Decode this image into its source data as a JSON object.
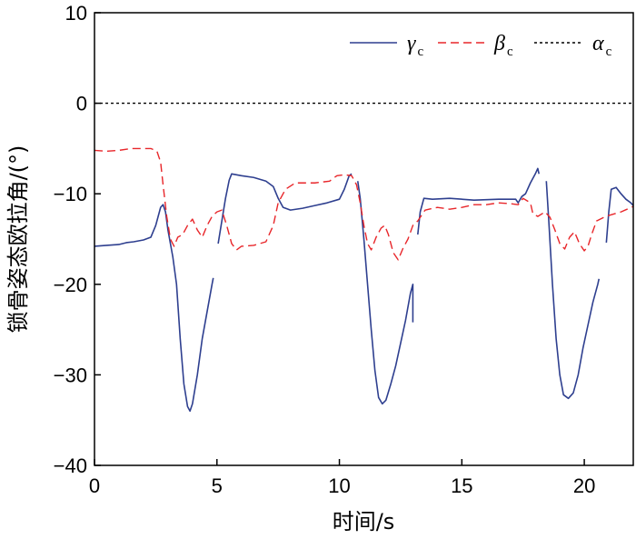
{
  "chart_data": {
    "type": "line",
    "title": "",
    "xlabel": "时间/s",
    "ylabel": "锁骨姿态欧拉角/(°)",
    "xlim": [
      0,
      22
    ],
    "ylim": [
      -40,
      10
    ],
    "xticks": [
      "0",
      "5",
      "10",
      "15",
      "20"
    ],
    "yticks": [
      "10",
      "0",
      "−10",
      "−20",
      "−30",
      "−40"
    ],
    "legend_position": "top-right",
    "grid": false,
    "series": [
      {
        "name": "γ",
        "subscript": "c",
        "color": "#2e3f8f",
        "style": "solid",
        "segments": [
          [
            [
              0,
              -15.8
            ],
            [
              0.5,
              -15.7
            ],
            [
              1.0,
              -15.6
            ],
            [
              1.3,
              -15.4
            ],
            [
              1.6,
              -15.3
            ],
            [
              2.0,
              -15.1
            ],
            [
              2.3,
              -14.8
            ],
            [
              2.5,
              -13.5
            ],
            [
              2.7,
              -11.5
            ],
            [
              2.8,
              -11.2
            ],
            [
              2.9,
              -12.0
            ],
            [
              3.0,
              -14.0
            ],
            [
              3.2,
              -17.0
            ],
            [
              3.35,
              -20.0
            ],
            [
              3.5,
              -26.0
            ],
            [
              3.65,
              -31.0
            ],
            [
              3.8,
              -33.5
            ],
            [
              3.9,
              -34.0
            ],
            [
              4.0,
              -33.2
            ],
            [
              4.2,
              -30.0
            ],
            [
              4.4,
              -26.0
            ],
            [
              4.6,
              -23.0
            ],
            [
              4.8,
              -20.0
            ],
            [
              4.85,
              -19.3
            ]
          ],
          [
            [
              5.05,
              -15.5
            ],
            [
              5.2,
              -13.0
            ],
            [
              5.35,
              -10.5
            ],
            [
              5.5,
              -8.5
            ],
            [
              5.6,
              -7.8
            ],
            [
              6.0,
              -8.0
            ],
            [
              6.5,
              -8.2
            ],
            [
              7.0,
              -8.6
            ],
            [
              7.3,
              -9.2
            ],
            [
              7.5,
              -10.5
            ],
            [
              7.7,
              -11.5
            ],
            [
              8.0,
              -11.8
            ],
            [
              8.5,
              -11.6
            ],
            [
              9.0,
              -11.3
            ],
            [
              9.5,
              -11.0
            ],
            [
              10.0,
              -10.6
            ],
            [
              10.2,
              -9.5
            ],
            [
              10.4,
              -8.0
            ],
            [
              10.5,
              -7.8
            ]
          ],
          [
            [
              10.75,
              -8.6
            ],
            [
              10.85,
              -10.5
            ],
            [
              11.0,
              -15.0
            ],
            [
              11.15,
              -20.0
            ],
            [
              11.3,
              -25.0
            ],
            [
              11.45,
              -29.5
            ],
            [
              11.6,
              -32.5
            ],
            [
              11.75,
              -33.2
            ],
            [
              11.9,
              -32.8
            ],
            [
              12.1,
              -31.0
            ],
            [
              12.3,
              -29.0
            ],
            [
              12.5,
              -26.5
            ],
            [
              12.7,
              -24.0
            ],
            [
              12.9,
              -21.0
            ],
            [
              13.0,
              -20.0
            ],
            [
              13.0,
              -24.2
            ]
          ],
          [
            [
              13.2,
              -14.5
            ],
            [
              13.3,
              -12.0
            ],
            [
              13.45,
              -10.5
            ],
            [
              13.8,
              -10.6
            ],
            [
              14.5,
              -10.5
            ],
            [
              15.5,
              -10.7
            ],
            [
              16.5,
              -10.6
            ],
            [
              17.2,
              -10.6
            ],
            [
              17.3,
              -11.0
            ],
            [
              17.45,
              -10.3
            ],
            [
              17.6,
              -10.0
            ],
            [
              17.8,
              -8.8
            ],
            [
              18.0,
              -7.8
            ],
            [
              18.1,
              -7.2
            ],
            [
              18.15,
              -7.8
            ]
          ],
          [
            [
              18.45,
              -8.6
            ],
            [
              18.55,
              -13.0
            ],
            [
              18.7,
              -20.0
            ],
            [
              18.85,
              -26.0
            ],
            [
              19.0,
              -30.0
            ],
            [
              19.15,
              -32.2
            ],
            [
              19.35,
              -32.6
            ],
            [
              19.55,
              -32.0
            ],
            [
              19.75,
              -30.0
            ],
            [
              19.95,
              -27.0
            ],
            [
              20.15,
              -24.5
            ],
            [
              20.35,
              -22.0
            ],
            [
              20.55,
              -20.0
            ],
            [
              20.6,
              -19.4
            ]
          ],
          [
            [
              20.9,
              -15.4
            ],
            [
              21.0,
              -12.0
            ],
            [
              21.1,
              -9.5
            ],
            [
              21.3,
              -9.3
            ],
            [
              21.5,
              -10.0
            ],
            [
              21.7,
              -10.6
            ],
            [
              21.9,
              -11.0
            ],
            [
              22.0,
              -11.3
            ]
          ]
        ]
      },
      {
        "name": "β",
        "subscript": "c",
        "color": "#e8262a",
        "style": "dashed",
        "segments": [
          [
            [
              0,
              -5.2
            ],
            [
              0.5,
              -5.3
            ],
            [
              1.0,
              -5.2
            ],
            [
              1.5,
              -5.0
            ],
            [
              2.0,
              -5.0
            ],
            [
              2.3,
              -5.0
            ],
            [
              2.55,
              -5.3
            ],
            [
              2.7,
              -6.5
            ],
            [
              2.8,
              -9.0
            ],
            [
              2.95,
              -12.5
            ],
            [
              3.1,
              -15.0
            ],
            [
              3.25,
              -15.8
            ],
            [
              3.4,
              -14.8
            ],
            [
              3.6,
              -14.5
            ],
            [
              3.8,
              -13.5
            ],
            [
              4.0,
              -12.8
            ],
            [
              4.2,
              -14.0
            ],
            [
              4.4,
              -14.8
            ],
            [
              4.6,
              -13.5
            ],
            [
              4.8,
              -12.5
            ],
            [
              5.0,
              -12.0
            ],
            [
              5.2,
              -11.8
            ],
            [
              5.4,
              -13.5
            ],
            [
              5.6,
              -15.5
            ],
            [
              5.8,
              -16.2
            ],
            [
              6.0,
              -15.8
            ],
            [
              6.5,
              -15.7
            ],
            [
              7.0,
              -15.3
            ],
            [
              7.3,
              -13.5
            ],
            [
              7.5,
              -11.0
            ],
            [
              7.8,
              -9.5
            ],
            [
              8.2,
              -8.8
            ],
            [
              9.0,
              -8.8
            ],
            [
              9.6,
              -8.6
            ],
            [
              9.9,
              -8.0
            ],
            [
              10.2,
              -7.9
            ],
            [
              10.5,
              -8.0
            ],
            [
              10.7,
              -9.0
            ],
            [
              10.85,
              -11.0
            ],
            [
              11.0,
              -13.5
            ],
            [
              11.15,
              -15.5
            ],
            [
              11.3,
              -16.2
            ],
            [
              11.5,
              -14.8
            ],
            [
              11.7,
              -13.8
            ],
            [
              11.85,
              -13.5
            ],
            [
              12.0,
              -14.5
            ],
            [
              12.2,
              -16.5
            ],
            [
              12.4,
              -17.3
            ],
            [
              12.6,
              -16.0
            ],
            [
              12.8,
              -15.0
            ],
            [
              13.0,
              -13.5
            ],
            [
              13.2,
              -13.0
            ],
            [
              13.5,
              -11.8
            ],
            [
              14.0,
              -11.5
            ],
            [
              14.5,
              -11.7
            ],
            [
              15.0,
              -11.5
            ],
            [
              15.5,
              -11.2
            ],
            [
              16.0,
              -11.2
            ],
            [
              16.5,
              -11.0
            ],
            [
              17.0,
              -11.1
            ],
            [
              17.3,
              -11.2
            ],
            [
              17.5,
              -10.5
            ],
            [
              17.8,
              -11.0
            ],
            [
              17.9,
              -12.2
            ],
            [
              18.1,
              -12.5
            ],
            [
              18.4,
              -12.0
            ],
            [
              18.6,
              -12.6
            ],
            [
              18.8,
              -14.0
            ],
            [
              19.0,
              -15.5
            ],
            [
              19.2,
              -16.1
            ],
            [
              19.4,
              -14.8
            ],
            [
              19.6,
              -14.2
            ],
            [
              19.8,
              -15.5
            ],
            [
              20.0,
              -16.3
            ],
            [
              20.15,
              -15.8
            ],
            [
              20.3,
              -14.5
            ],
            [
              20.5,
              -13.0
            ],
            [
              20.8,
              -12.6
            ],
            [
              21.0,
              -12.4
            ],
            [
              21.5,
              -12.0
            ],
            [
              22.0,
              -11.4
            ]
          ]
        ]
      },
      {
        "name": "α",
        "subscript": "c",
        "color": "#000000",
        "style": "dotted",
        "segments": [
          [
            [
              0,
              0
            ],
            [
              22,
              0
            ]
          ]
        ]
      }
    ]
  }
}
